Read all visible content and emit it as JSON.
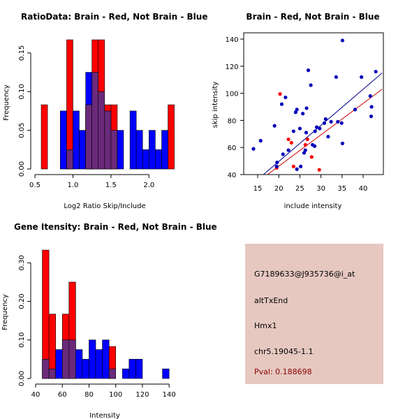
{
  "chart_data": [
    {
      "type": "histogram",
      "title": "RatioData: Brain - Red, Not Brain - Blue",
      "xlabel": "Log2 Ratio Skip/Include",
      "ylabel": "Frequency",
      "xlim": [
        0.5,
        2.3
      ],
      "ylim": [
        0,
        0.167
      ],
      "xticks": [
        "0.5",
        "1.0",
        "1.5",
        "2.0"
      ],
      "yticks": [
        "0.00",
        "0.05",
        "0.10",
        "0.15"
      ],
      "colors": {
        "brain": "#ff0000",
        "not_brain": "#0000ff",
        "overlap": "#6b2a7a"
      },
      "series": [
        {
          "name": "Brain",
          "color": "#ff0000",
          "bin_width": 0.083,
          "bins": [
            [
              0.583,
              0.083
            ],
            [
              0.917,
              0.167
            ],
            [
              1.167,
              0.083
            ],
            [
              1.25,
              0.167
            ],
            [
              1.333,
              0.167
            ],
            [
              1.417,
              0.083
            ],
            [
              1.5,
              0.083
            ],
            [
              2.25,
              0.083
            ]
          ]
        },
        {
          "name": "Not Brain",
          "color": "#0000ff",
          "bin_width": 0.083,
          "bins": [
            [
              0.833,
              0.075
            ],
            [
              0.917,
              0.025
            ],
            [
              1.0,
              0.075
            ],
            [
              1.083,
              0.05
            ],
            [
              1.167,
              0.125
            ],
            [
              1.25,
              0.125
            ],
            [
              1.333,
              0.1
            ],
            [
              1.417,
              0.075
            ],
            [
              1.5,
              0.05
            ],
            [
              1.583,
              0.05
            ],
            [
              1.75,
              0.075
            ],
            [
              1.833,
              0.05
            ],
            [
              1.917,
              0.025
            ],
            [
              2.0,
              0.05
            ],
            [
              2.083,
              0.025
            ],
            [
              2.167,
              0.05
            ]
          ]
        }
      ]
    },
    {
      "type": "scatter",
      "title": "Brain - Red, Not Brain - Blue",
      "xlabel": "include intensity",
      "ylabel": "skip intensity",
      "xlim": [
        12.5,
        44.5
      ],
      "ylim": [
        40,
        145
      ],
      "xticks": [
        "15",
        "20",
        "25",
        "30",
        "35",
        "40"
      ],
      "yticks": [
        "40",
        "60",
        "80",
        "100",
        "120",
        "140"
      ],
      "series": [
        {
          "name": "Brain",
          "color": "#ff0000",
          "points": [
            [
              20.3,
              99.5
            ],
            [
              22.3,
              66
            ],
            [
              23,
              63.5
            ],
            [
              23.5,
              46
            ],
            [
              26.3,
              62
            ],
            [
              26.8,
              66
            ],
            [
              27.8,
              53
            ],
            [
              29.6,
              43.5
            ],
            [
              19.5,
              45
            ]
          ]
        },
        {
          "name": "Not Brain",
          "color": "#0000bb",
          "points": [
            [
              14,
              59
            ],
            [
              15.7,
              65
            ],
            [
              19,
              76
            ],
            [
              19.6,
              49
            ],
            [
              19.5,
              46
            ],
            [
              20.7,
              92
            ],
            [
              21,
              55
            ],
            [
              21.6,
              97
            ],
            [
              22.3,
              58
            ],
            [
              23.5,
              72
            ],
            [
              24,
              86
            ],
            [
              24.3,
              88
            ],
            [
              24.3,
              44
            ],
            [
              25,
              74
            ],
            [
              25.2,
              46
            ],
            [
              25.7,
              85
            ],
            [
              26,
              56
            ],
            [
              26.3,
              58
            ],
            [
              26.5,
              71
            ],
            [
              26.6,
              89
            ],
            [
              27,
              117
            ],
            [
              27.6,
              106
            ],
            [
              28,
              62
            ],
            [
              28.5,
              61
            ],
            [
              28.6,
              72
            ],
            [
              29,
              75
            ],
            [
              29.7,
              74
            ],
            [
              30.8,
              78
            ],
            [
              31.1,
              81
            ],
            [
              31.7,
              68
            ],
            [
              32.4,
              79
            ],
            [
              33.6,
              112
            ],
            [
              34,
              79
            ],
            [
              34.9,
              78
            ],
            [
              35.1,
              139
            ],
            [
              35.1,
              63
            ],
            [
              38.1,
              88
            ],
            [
              39.6,
              112
            ],
            [
              41.7,
              98
            ],
            [
              41.9,
              83
            ],
            [
              42,
              90
            ],
            [
              43,
              116
            ]
          ]
        }
      ],
      "fit_lines": [
        {
          "name": "Brain",
          "color": "#cc0000",
          "from": [
            15.6,
            36
          ],
          "to": [
            44.5,
            103
          ]
        },
        {
          "name": "Not Brain",
          "color": "#00008b",
          "from": [
            16,
            39
          ],
          "to": [
            44.5,
            115
          ]
        }
      ]
    },
    {
      "type": "histogram",
      "title": "Gene Itensity: Brain - Red, Not Brain - Blue",
      "xlabel": "Intensity",
      "ylabel": "Frequency",
      "xlim": [
        40,
        142
      ],
      "ylim": [
        0,
        0.335
      ],
      "xticks": [
        "40",
        "60",
        "80",
        "100",
        "120",
        "140"
      ],
      "yticks": [
        "0.00",
        "0.10",
        "0.20",
        "0.30"
      ],
      "series": [
        {
          "name": "Brain",
          "color": "#ff0000",
          "bin_width": 5,
          "bins": [
            [
              45,
              0.333
            ],
            [
              50,
              0.167
            ],
            [
              60,
              0.167
            ],
            [
              65,
              0.25
            ],
            [
              95,
              0.083
            ]
          ]
        },
        {
          "name": "Not Brain",
          "color": "#0000ff",
          "bin_width": 5,
          "bins": [
            [
              45,
              0.05
            ],
            [
              50,
              0.025
            ],
            [
              55,
              0.075
            ],
            [
              60,
              0.1
            ],
            [
              65,
              0.1
            ],
            [
              70,
              0.075
            ],
            [
              75,
              0.05
            ],
            [
              80,
              0.1
            ],
            [
              85,
              0.075
            ],
            [
              90,
              0.1
            ],
            [
              95,
              0.025
            ],
            [
              105,
              0.025
            ],
            [
              110,
              0.05
            ],
            [
              115,
              0.05
            ],
            [
              135,
              0.025
            ]
          ]
        }
      ]
    }
  ],
  "info": {
    "probe": "G7189633@J935736@i_at",
    "event": "altTxEnd",
    "gene": "Hmx1",
    "locus": "chr5.19045-1.1",
    "pval": "Pval: 0.188698"
  }
}
